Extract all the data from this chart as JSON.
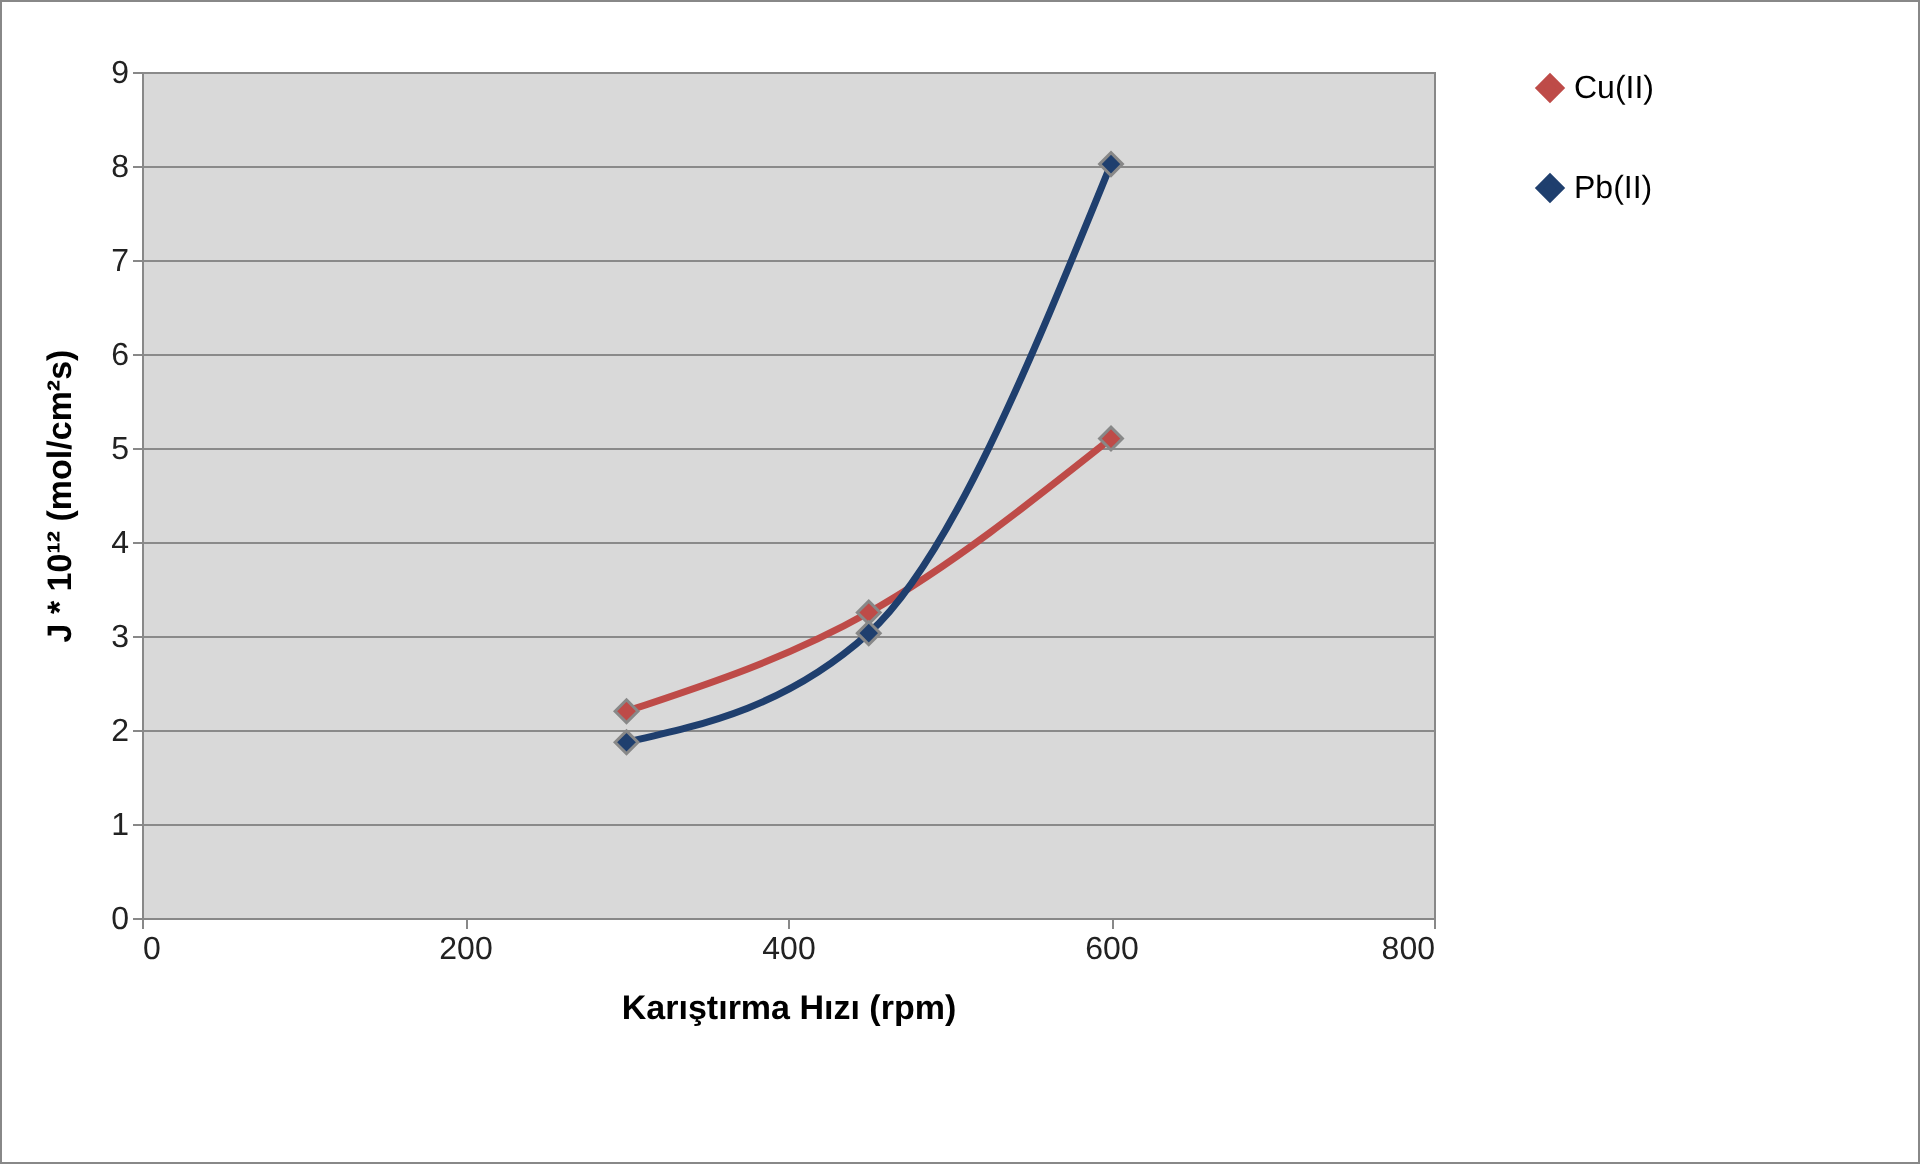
{
  "chart_data": {
    "type": "line",
    "xlabel": "Karıştırma Hızı (rpm)",
    "ylabel": "J * 10¹² (mol/cm²s)",
    "x": [
      300,
      450,
      600
    ],
    "series": [
      {
        "name": "Cu(II)",
        "color": "#be4b48",
        "values": [
          2.2,
          3.25,
          5.1
        ]
      },
      {
        "name": "Pb(II)",
        "color": "#1f3f6e",
        "values": [
          1.87,
          3.03,
          8.02
        ]
      }
    ],
    "xlim": [
      0,
      800
    ],
    "xticks": [
      0,
      200,
      400,
      600,
      800
    ],
    "ylim": [
      0,
      9
    ],
    "yticks": [
      0,
      1,
      2,
      3,
      4,
      5,
      6,
      7,
      8,
      9
    ],
    "grid": "y",
    "legend": "right",
    "marker": "diamond",
    "line_style": "solid"
  }
}
